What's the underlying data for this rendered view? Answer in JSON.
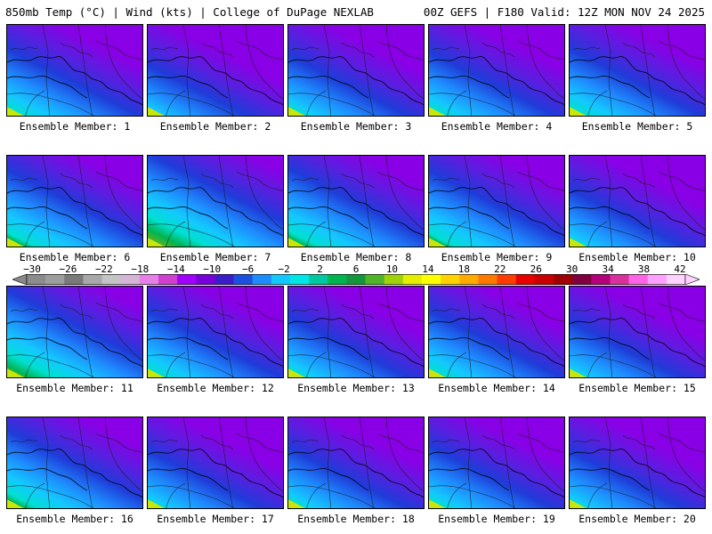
{
  "header": {
    "left": "850mb Temp (°C) | Wind (kts) | College of DuPage NEXLAB",
    "right": "00Z GEFS | F180 Valid: 12Z MON NOV 24 2025"
  },
  "colorbar": {
    "labels": [
      "−30",
      "−26",
      "−22",
      "−18",
      "−14",
      "−10",
      "−6",
      "−2",
      "2",
      "6",
      "10",
      "14",
      "18",
      "22",
      "26",
      "30",
      "34",
      "38",
      "42"
    ],
    "colors": [
      "#8c8c8c",
      "#9e9e9e",
      "#7a7a7a",
      "#a8a8a8",
      "#c4c4c4",
      "#d6b4d6",
      "#e680e6",
      "#d040d0",
      "#a000ff",
      "#7800d8",
      "#3c1ec8",
      "#1e50e0",
      "#1e8cff",
      "#14c8ff",
      "#00e6e6",
      "#00c8a0",
      "#00b450",
      "#14963c",
      "#50b428",
      "#a0d20a",
      "#e6ee00",
      "#ffff00",
      "#ffd200",
      "#ffaa00",
      "#ff7800",
      "#ff3c00",
      "#e60000",
      "#c80000",
      "#a00000",
      "#800040",
      "#b4007a",
      "#d8309c",
      "#ff64e6",
      "#ffa0ff",
      "#ffd2ff"
    ]
  },
  "panels": [
    {
      "label": "Ensemble Member: 1",
      "warm": 0.45
    },
    {
      "label": "Ensemble Member: 2",
      "warm": 0.2
    },
    {
      "label": "Ensemble Member: 3",
      "warm": 0.35
    },
    {
      "label": "Ensemble Member: 4",
      "warm": 0.4
    },
    {
      "label": "Ensemble Member: 5",
      "warm": 0.45
    },
    {
      "label": "Ensemble Member: 6",
      "warm": 0.6
    },
    {
      "label": "Ensemble Member: 7",
      "warm": 0.85
    },
    {
      "label": "Ensemble Member: 8",
      "warm": 0.62
    },
    {
      "label": "Ensemble Member: 9",
      "warm": 0.58
    },
    {
      "label": "Ensemble Member: 10",
      "warm": 0.3
    },
    {
      "label": "Ensemble Member: 11",
      "warm": 0.75
    },
    {
      "label": "Ensemble Member: 12",
      "warm": 0.45
    },
    {
      "label": "Ensemble Member: 13",
      "warm": 0.35
    },
    {
      "label": "Ensemble Member: 14",
      "warm": 0.45
    },
    {
      "label": "Ensemble Member: 15",
      "warm": 0.28
    },
    {
      "label": "Ensemble Member: 16",
      "warm": 0.62
    },
    {
      "label": "Ensemble Member: 17",
      "warm": 0.3
    },
    {
      "label": "Ensemble Member: 18",
      "warm": 0.35
    },
    {
      "label": "Ensemble Member: 19",
      "warm": 0.38
    },
    {
      "label": "Ensemble Member: 20",
      "warm": 0.3
    }
  ]
}
